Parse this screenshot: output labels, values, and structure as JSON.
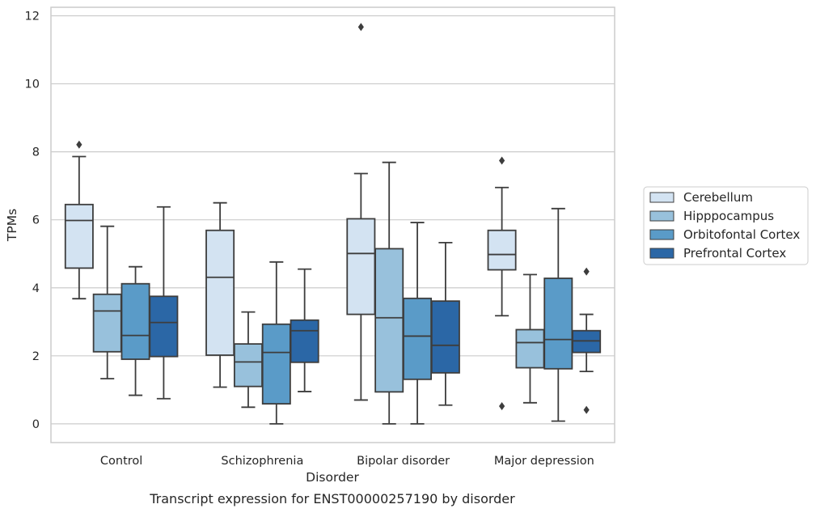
{
  "chart_data": {
    "type": "box",
    "title": "",
    "caption": "Transcript expression for ENST00000257190 by disorder",
    "xlabel": "Disorder",
    "ylabel": "TPMs",
    "categories": [
      "Control",
      "Schizophrenia",
      "Bipolar disorder",
      "Major depression"
    ],
    "ylim": [
      -0.55,
      12.25
    ],
    "yticks": [
      0,
      2,
      4,
      6,
      8,
      10,
      12
    ],
    "grid": true,
    "legend_position": "center-right",
    "series": [
      {
        "name": "Cerebellum",
        "color": "#d3e3f2",
        "boxes": [
          {
            "whislo": 3.68,
            "q1": 4.58,
            "med": 5.98,
            "q3": 6.45,
            "whishi": 7.86,
            "fliers": [
              8.21
            ]
          },
          {
            "whislo": 1.08,
            "q1": 2.02,
            "med": 4.31,
            "q3": 5.69,
            "whishi": 6.5,
            "fliers": []
          },
          {
            "whislo": 0.7,
            "q1": 3.22,
            "med": 5.01,
            "q3": 6.03,
            "whishi": 7.36,
            "fliers": [
              11.67
            ]
          },
          {
            "whislo": 3.18,
            "q1": 4.53,
            "med": 4.98,
            "q3": 5.69,
            "whishi": 6.95,
            "fliers": [
              7.74,
              0.52
            ]
          }
        ]
      },
      {
        "name": "Hipppocampus",
        "color": "#98c1dc",
        "boxes": [
          {
            "whislo": 1.33,
            "q1": 2.12,
            "med": 3.32,
            "q3": 3.81,
            "whishi": 5.81,
            "fliers": []
          },
          {
            "whislo": 0.49,
            "q1": 1.1,
            "med": 1.82,
            "q3": 2.35,
            "whishi": 3.29,
            "fliers": []
          },
          {
            "whislo": 0.0,
            "q1": 0.94,
            "med": 3.12,
            "q3": 5.15,
            "whishi": 7.69,
            "fliers": []
          },
          {
            "whislo": 0.62,
            "q1": 1.65,
            "med": 2.39,
            "q3": 2.77,
            "whishi": 4.39,
            "fliers": []
          }
        ]
      },
      {
        "name": "Orbitofontal Cortex",
        "color": "#5a9bc8",
        "boxes": [
          {
            "whislo": 0.84,
            "q1": 1.9,
            "med": 2.6,
            "q3": 4.12,
            "whishi": 4.62,
            "fliers": []
          },
          {
            "whislo": 0.0,
            "q1": 0.59,
            "med": 2.1,
            "q3": 2.93,
            "whishi": 4.76,
            "fliers": []
          },
          {
            "whislo": 0.0,
            "q1": 1.31,
            "med": 2.58,
            "q3": 3.69,
            "whishi": 5.92,
            "fliers": []
          },
          {
            "whislo": 0.08,
            "q1": 1.62,
            "med": 2.48,
            "q3": 4.28,
            "whishi": 6.33,
            "fliers": []
          }
        ]
      },
      {
        "name": "Prefrontal Cortex",
        "color": "#2b67a6",
        "boxes": [
          {
            "whislo": 0.74,
            "q1": 1.98,
            "med": 2.98,
            "q3": 3.75,
            "whishi": 6.38,
            "fliers": []
          },
          {
            "whislo": 0.95,
            "q1": 1.81,
            "med": 2.74,
            "q3": 3.05,
            "whishi": 4.55,
            "fliers": []
          },
          {
            "whislo": 0.55,
            "q1": 1.5,
            "med": 2.31,
            "q3": 3.61,
            "whishi": 5.33,
            "fliers": []
          },
          {
            "whislo": 1.54,
            "q1": 2.1,
            "med": 2.44,
            "q3": 2.74,
            "whishi": 3.22,
            "fliers": [
              4.48,
              0.41
            ]
          }
        ]
      }
    ],
    "colors": {
      "edge": "#3d3d3d",
      "grid": "#cccccc",
      "frame": "#cccccc",
      "text": "#262626"
    }
  }
}
